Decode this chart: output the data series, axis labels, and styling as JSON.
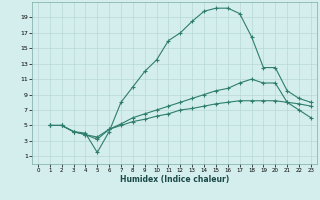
{
  "xlabel": "Humidex (Indice chaleur)",
  "bg_color": "#d4eeed",
  "line_color": "#2e7d6e",
  "grid_color": "#b8d8d4",
  "xlim": [
    -0.5,
    23.5
  ],
  "ylim": [
    0,
    21
  ],
  "xticks": [
    0,
    1,
    2,
    3,
    4,
    5,
    6,
    7,
    8,
    9,
    10,
    11,
    12,
    13,
    14,
    15,
    16,
    17,
    18,
    19,
    20,
    21,
    22,
    23
  ],
  "yticks": [
    1,
    3,
    5,
    7,
    9,
    11,
    13,
    15,
    17,
    19
  ],
  "line1_x": [
    1,
    2,
    3,
    4,
    5,
    6,
    7,
    8,
    9,
    10,
    11,
    12,
    13,
    14,
    15,
    16,
    17,
    18,
    19,
    20,
    21,
    22,
    23
  ],
  "line1_y": [
    5,
    5,
    4.2,
    4.0,
    1.5,
    4.2,
    8.0,
    10.0,
    12.0,
    13.5,
    16.0,
    17.0,
    18.5,
    19.8,
    20.2,
    20.2,
    19.5,
    16.5,
    12.5,
    12.5,
    9.5,
    8.5,
    8.0
  ],
  "line2_x": [
    1,
    2,
    3,
    4,
    5,
    6,
    7,
    8,
    9,
    10,
    11,
    12,
    13,
    14,
    15,
    16,
    17,
    18,
    19,
    20,
    21,
    22,
    23
  ],
  "line2_y": [
    5,
    5,
    4.2,
    3.8,
    3.5,
    4.5,
    5.2,
    6.0,
    6.5,
    7.0,
    7.5,
    8.0,
    8.5,
    9.0,
    9.5,
    9.8,
    10.5,
    11.0,
    10.5,
    10.5,
    8.0,
    7.0,
    6.0
  ],
  "line3_x": [
    1,
    2,
    3,
    4,
    5,
    6,
    7,
    8,
    9,
    10,
    11,
    12,
    13,
    14,
    15,
    16,
    17,
    18,
    19,
    20,
    21,
    22,
    23
  ],
  "line3_y": [
    5,
    5,
    4.2,
    3.8,
    3.2,
    4.5,
    5.0,
    5.5,
    5.8,
    6.2,
    6.5,
    7.0,
    7.2,
    7.5,
    7.8,
    8.0,
    8.2,
    8.2,
    8.2,
    8.2,
    8.0,
    7.8,
    7.5
  ]
}
